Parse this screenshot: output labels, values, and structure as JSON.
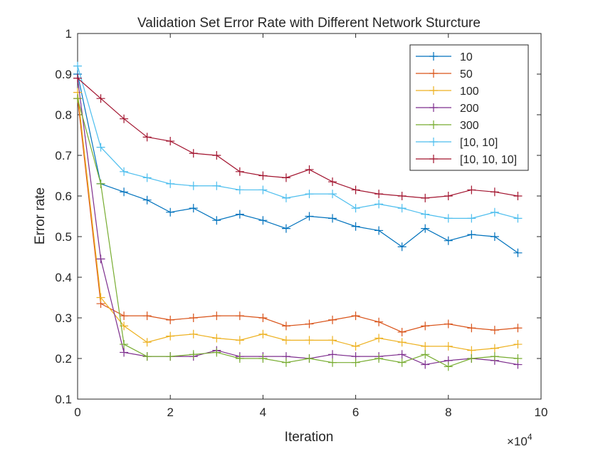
{
  "chart_data": {
    "type": "line",
    "title": "Validation Set Error Rate with Different Network Sturcture",
    "xlabel": "Iteration",
    "ylabel": "Error rate",
    "x_exponent_label": "×10",
    "x_exponent_power": "4",
    "xlim": [
      0,
      10
    ],
    "ylim": [
      0.1,
      1
    ],
    "xticks": [
      "0",
      "2",
      "4",
      "6",
      "8",
      "10"
    ],
    "yticks": [
      "0.1",
      "0.2",
      "0.3",
      "0.4",
      "0.5",
      "0.6",
      "0.7",
      "0.8",
      "0.9",
      "1"
    ],
    "grid": false,
    "legend_position": "top-right",
    "marker": "+",
    "x": [
      0,
      0.5,
      1,
      1.5,
      2,
      2.5,
      3,
      3.5,
      4,
      4.5,
      5,
      5.5,
      6,
      6.5,
      7,
      7.5,
      8,
      8.5,
      9,
      9.5
    ],
    "series": [
      {
        "name": "10",
        "color": "#0072BD",
        "values": [
          0.9,
          0.63,
          0.61,
          0.59,
          0.56,
          0.57,
          0.54,
          0.555,
          0.54,
          0.52,
          0.55,
          0.545,
          0.525,
          0.515,
          0.475,
          0.52,
          0.49,
          0.505,
          0.5,
          0.46
        ]
      },
      {
        "name": "50",
        "color": "#D95319",
        "values": [
          0.84,
          0.335,
          0.305,
          0.305,
          0.295,
          0.3,
          0.305,
          0.305,
          0.3,
          0.28,
          0.285,
          0.295,
          0.305,
          0.29,
          0.265,
          0.28,
          0.285,
          0.275,
          0.27,
          0.275
        ]
      },
      {
        "name": "100",
        "color": "#EDB120",
        "values": [
          0.855,
          0.35,
          0.28,
          0.24,
          0.255,
          0.26,
          0.25,
          0.245,
          0.26,
          0.245,
          0.245,
          0.245,
          0.23,
          0.25,
          0.24,
          0.23,
          0.23,
          0.22,
          0.225,
          0.235
        ]
      },
      {
        "name": "200",
        "color": "#7E2F8E",
        "values": [
          0.89,
          0.445,
          0.215,
          0.205,
          0.205,
          0.205,
          0.22,
          0.205,
          0.205,
          0.205,
          0.2,
          0.21,
          0.205,
          0.205,
          0.21,
          0.185,
          0.195,
          0.2,
          0.195,
          0.185
        ]
      },
      {
        "name": "300",
        "color": "#77AC30",
        "values": [
          0.84,
          0.63,
          0.235,
          0.205,
          0.205,
          0.21,
          0.215,
          0.2,
          0.2,
          0.19,
          0.2,
          0.19,
          0.19,
          0.2,
          0.19,
          0.21,
          0.18,
          0.2,
          0.205,
          0.2
        ]
      },
      {
        "name": "[10, 10]",
        "color": "#4DBEEE",
        "values": [
          0.92,
          0.72,
          0.66,
          0.645,
          0.63,
          0.625,
          0.625,
          0.615,
          0.615,
          0.595,
          0.605,
          0.605,
          0.57,
          0.58,
          0.57,
          0.555,
          0.545,
          0.545,
          0.56,
          0.545
        ]
      },
      {
        "name": "[10, 10, 10]",
        "color": "#A2142F",
        "values": [
          0.89,
          0.84,
          0.79,
          0.745,
          0.735,
          0.705,
          0.7,
          0.66,
          0.65,
          0.645,
          0.665,
          0.635,
          0.615,
          0.605,
          0.6,
          0.595,
          0.6,
          0.615,
          0.61,
          0.6
        ]
      }
    ]
  }
}
